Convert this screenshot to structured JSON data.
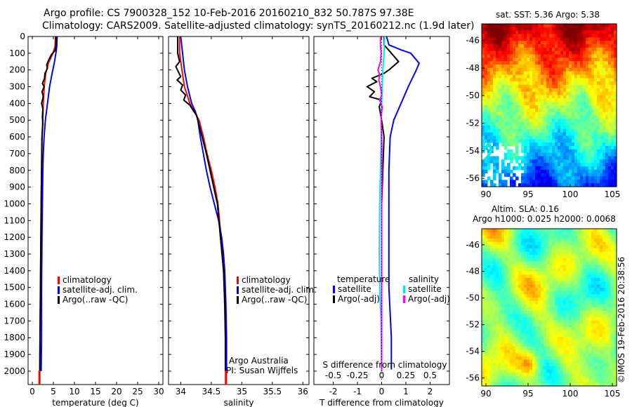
{
  "header": {
    "title_line1": "Argo profile: CS 7900328_152 10-Feb-2016 20160210_832 50.787S 97.38E",
    "title_line2": "Climatology: CARS2009. Satellite-adjusted climatology: synTS_20160212.nc (1.9d later)"
  },
  "colors": {
    "climatology": "#ff0000",
    "satellite": "#0000ff",
    "argo": "#000000",
    "sat_salinity": "#00e8e8",
    "argo_salinity_adj": "#ff00ff"
  },
  "chart_data": [
    {
      "type": "line",
      "name": "temperature-profile",
      "xlabel": "temperature (deg C)",
      "ylabel": "",
      "xlim": [
        -1,
        31
      ],
      "ylim": [
        2080,
        0
      ],
      "xticks": [
        0,
        5,
        10,
        15,
        20,
        25,
        30
      ],
      "yticks": [
        0,
        100,
        200,
        300,
        400,
        500,
        600,
        700,
        800,
        900,
        1000,
        1100,
        1200,
        1300,
        1400,
        1500,
        1600,
        1700,
        1800,
        1900,
        2000
      ],
      "legend": {
        "position": "center",
        "entries": [
          "climatology",
          "satellite-adj. clim.",
          "Argo(..raw -QC)"
        ]
      },
      "series": [
        {
          "name": "climatology",
          "color": "#ff0000",
          "points": [
            [
              5.5,
              0
            ],
            [
              5.4,
              60
            ],
            [
              4.9,
              100
            ],
            [
              3.8,
              160
            ],
            [
              3.2,
              220
            ],
            [
              2.9,
              280
            ],
            [
              2.7,
              350
            ],
            [
              2.6,
              400
            ],
            [
              2.5,
              500
            ],
            [
              2.3,
              600
            ],
            [
              2.2,
              800
            ],
            [
              2.1,
              1000
            ],
            [
              2.0,
              1300
            ],
            [
              1.9,
              1600
            ],
            [
              1.8,
              1900
            ],
            [
              1.7,
              2080
            ]
          ]
        },
        {
          "name": "satellite-adj. clim.",
          "color": "#0000ff",
          "points": [
            [
              5.9,
              0
            ],
            [
              5.8,
              60
            ],
            [
              5.6,
              100
            ],
            [
              5.2,
              160
            ],
            [
              4.7,
              220
            ],
            [
              4.1,
              300
            ],
            [
              3.6,
              400
            ],
            [
              3.1,
              500
            ],
            [
              2.8,
              600
            ],
            [
              2.6,
              700
            ],
            [
              2.5,
              800
            ],
            [
              2.4,
              1000
            ],
            [
              2.3,
              1200
            ],
            [
              2.2,
              1500
            ],
            [
              2.2,
              1800
            ],
            [
              2.1,
              2000
            ]
          ]
        },
        {
          "name": "Argo(..raw -QC)",
          "color": "#000000",
          "points": [
            [
              5.6,
              0
            ],
            [
              5.6,
              40
            ],
            [
              5.5,
              80
            ],
            [
              4.5,
              110
            ],
            [
              3.9,
              140
            ],
            [
              3.4,
              170
            ],
            [
              3.6,
              190
            ],
            [
              3.0,
              220
            ],
            [
              2.9,
              250
            ],
            [
              2.4,
              280
            ],
            [
              2.8,
              300
            ],
            [
              2.3,
              330
            ],
            [
              2.6,
              360
            ],
            [
              2.2,
              400
            ],
            [
              2.5,
              430
            ],
            [
              2.4,
              480
            ],
            [
              2.5,
              520
            ],
            [
              2.3,
              600
            ],
            [
              2.2,
              800
            ],
            [
              2.1,
              1000
            ],
            [
              2.0,
              1300
            ],
            [
              1.9,
              1600
            ],
            [
              1.8,
              1900
            ],
            [
              1.8,
              2000
            ]
          ]
        }
      ]
    },
    {
      "type": "line",
      "name": "salinity-profile",
      "xlabel": "salinity",
      "ylabel": "",
      "xlim": [
        33.8,
        36.1
      ],
      "ylim": [
        2080,
        0
      ],
      "xticks": [
        34,
        34.5,
        35,
        35.5,
        36
      ],
      "legend": {
        "position": "center",
        "entries": [
          "climatology",
          "satellite-adj. clim.",
          "Argo(..raw -QC)"
        ]
      },
      "annotations": [
        "Argo Australia",
        "PI: Susan Wijffels"
      ],
      "series": [
        {
          "name": "climatology",
          "color": "#ff0000",
          "points": [
            [
              33.98,
              0
            ],
            [
              33.98,
              100
            ],
            [
              34.02,
              200
            ],
            [
              34.06,
              300
            ],
            [
              34.15,
              400
            ],
            [
              34.22,
              450
            ],
            [
              34.3,
              500
            ],
            [
              34.37,
              600
            ],
            [
              34.43,
              700
            ],
            [
              34.5,
              800
            ],
            [
              34.56,
              900
            ],
            [
              34.61,
              1000
            ],
            [
              34.66,
              1200
            ],
            [
              34.71,
              1400
            ],
            [
              34.73,
              1600
            ],
            [
              34.74,
              1800
            ],
            [
              34.74,
              2080
            ]
          ]
        },
        {
          "name": "satellite-adj. clim.",
          "color": "#0000ff",
          "points": [
            [
              34.0,
              0
            ],
            [
              34.03,
              100
            ],
            [
              34.06,
              200
            ],
            [
              34.11,
              300
            ],
            [
              34.18,
              400
            ],
            [
              34.24,
              450
            ],
            [
              34.28,
              500
            ],
            [
              34.32,
              600
            ],
            [
              34.37,
              700
            ],
            [
              34.42,
              800
            ],
            [
              34.48,
              900
            ],
            [
              34.55,
              1000
            ],
            [
              34.62,
              1100
            ],
            [
              34.67,
              1200
            ],
            [
              34.7,
              1300
            ],
            [
              34.72,
              1400
            ],
            [
              34.74,
              1600
            ],
            [
              34.75,
              1800
            ],
            [
              34.75,
              2000
            ]
          ]
        },
        {
          "name": "Argo(..raw -QC)",
          "color": "#000000",
          "points": [
            [
              33.95,
              0
            ],
            [
              33.95,
              100
            ],
            [
              33.98,
              150
            ],
            [
              33.92,
              180
            ],
            [
              33.96,
              210
            ],
            [
              34.0,
              240
            ],
            [
              33.94,
              260
            ],
            [
              34.03,
              290
            ],
            [
              34.0,
              320
            ],
            [
              34.08,
              350
            ],
            [
              34.05,
              380
            ],
            [
              34.15,
              410
            ],
            [
              34.2,
              440
            ],
            [
              34.26,
              470
            ],
            [
              34.28,
              500
            ],
            [
              34.35,
              600
            ],
            [
              34.42,
              700
            ],
            [
              34.48,
              800
            ],
            [
              34.54,
              900
            ],
            [
              34.6,
              1000
            ],
            [
              34.65,
              1200
            ],
            [
              34.7,
              1400
            ],
            [
              34.72,
              1600
            ],
            [
              34.73,
              1800
            ],
            [
              34.73,
              2000
            ]
          ]
        }
      ]
    },
    {
      "type": "line",
      "name": "difference-profile",
      "xlabel": "T difference from climatology",
      "xlabel_top": "S difference from climatology",
      "ylabel": "",
      "xlim": [
        -2.8,
        2.8
      ],
      "ylim": [
        2080,
        0
      ],
      "xticks": [
        -2,
        -1,
        0,
        1,
        2
      ],
      "xticks_salinity": [
        -0.5,
        -0.25,
        0,
        0.25,
        0.5
      ],
      "legend": {
        "position": "center",
        "group_titles": [
          "temperature",
          "salinity"
        ],
        "entries": [
          "satellite",
          "Argo(-adj)",
          "satellite",
          "Argo(-adj)"
        ]
      },
      "series": [
        {
          "name": "temperature satellite",
          "color": "#0000ff",
          "points": [
            [
              0.2,
              0
            ],
            [
              0.3,
              50
            ],
            [
              0.8,
              80
            ],
            [
              1.2,
              100
            ],
            [
              1.55,
              160
            ],
            [
              1.4,
              210
            ],
            [
              1.1,
              300
            ],
            [
              0.8,
              400
            ],
            [
              0.5,
              500
            ],
            [
              0.35,
              600
            ],
            [
              0.3,
              800
            ],
            [
              0.3,
              1000
            ],
            [
              0.3,
              1200
            ],
            [
              0.3,
              1500
            ],
            [
              0.4,
              1800
            ],
            [
              0.4,
              1990
            ]
          ]
        },
        {
          "name": "temperature Argo(-adj)",
          "color": "#000000",
          "points": [
            [
              0.1,
              0
            ],
            [
              0.1,
              50
            ],
            [
              0.4,
              100
            ],
            [
              0.7,
              150
            ],
            [
              0.3,
              200
            ],
            [
              0.1,
              220
            ],
            [
              -0.4,
              250
            ],
            [
              -0.2,
              270
            ],
            [
              -0.6,
              300
            ],
            [
              -0.3,
              330
            ],
            [
              -0.5,
              360
            ],
            [
              0.0,
              380
            ],
            [
              -0.1,
              420
            ],
            [
              0.0,
              500
            ],
            [
              0.1,
              600
            ],
            [
              0.05,
              800
            ],
            [
              0.0,
              1000
            ],
            [
              0.0,
              1300
            ],
            [
              0.0,
              1600
            ],
            [
              0.0,
              1900
            ],
            [
              0.0,
              2000
            ]
          ]
        },
        {
          "name": "salinity satellite",
          "color": "#00e8e8",
          "points": [
            [
              0.12,
              0
            ],
            [
              0.1,
              100
            ],
            [
              0.05,
              200
            ],
            [
              0.0,
              400
            ],
            [
              -0.02,
              600
            ],
            [
              -0.05,
              800
            ],
            [
              -0.08,
              1000
            ],
            [
              -0.1,
              1300
            ],
            [
              -0.08,
              1500
            ],
            [
              -0.03,
              1700
            ],
            [
              0.0,
              2000
            ]
          ]
        },
        {
          "name": "salinity Argo(-adj)",
          "color": "#ff00ff",
          "points": [
            [
              -0.05,
              0
            ],
            [
              -0.05,
              50
            ],
            [
              -0.02,
              100
            ],
            [
              -0.05,
              150
            ],
            [
              -0.15,
              200
            ],
            [
              -0.08,
              230
            ],
            [
              -0.12,
              260
            ],
            [
              -0.05,
              300
            ],
            [
              0.0,
              350
            ],
            [
              -0.08,
              380
            ],
            [
              0.02,
              420
            ],
            [
              -0.02,
              480
            ],
            [
              0.0,
              600
            ],
            [
              0.01,
              800
            ],
            [
              0.0,
              1000
            ],
            [
              0.0,
              1300
            ],
            [
              0.0,
              1600
            ],
            [
              0.0,
              1900
            ],
            [
              0.0,
              2000
            ]
          ]
        }
      ]
    },
    {
      "type": "heatmap",
      "name": "sst-map",
      "title": "sat. SST: 5.36 Argo: 5.38",
      "xlim": [
        89.5,
        105.5
      ],
      "ylim": [
        -56.6,
        -44.8
      ],
      "xticks": [
        90,
        95,
        100,
        105
      ],
      "yticks": [
        -46,
        -48,
        -50,
        -52,
        -54,
        -56
      ]
    },
    {
      "type": "heatmap",
      "name": "sla-map",
      "title_line1": "Altim. SLA: 0.16",
      "title_line2": "Argo h1000: 0.025 h2000: 0.0068",
      "xlim": [
        89.5,
        105.5
      ],
      "ylim": [
        -56.6,
        -44.8
      ],
      "xticks": [
        90,
        95,
        100,
        105
      ],
      "yticks": [
        -46,
        -48,
        -50,
        -52,
        -54,
        -56
      ]
    }
  ],
  "footer": {
    "credit": "©IMOS 19-Feb-2016 20:38:56"
  }
}
